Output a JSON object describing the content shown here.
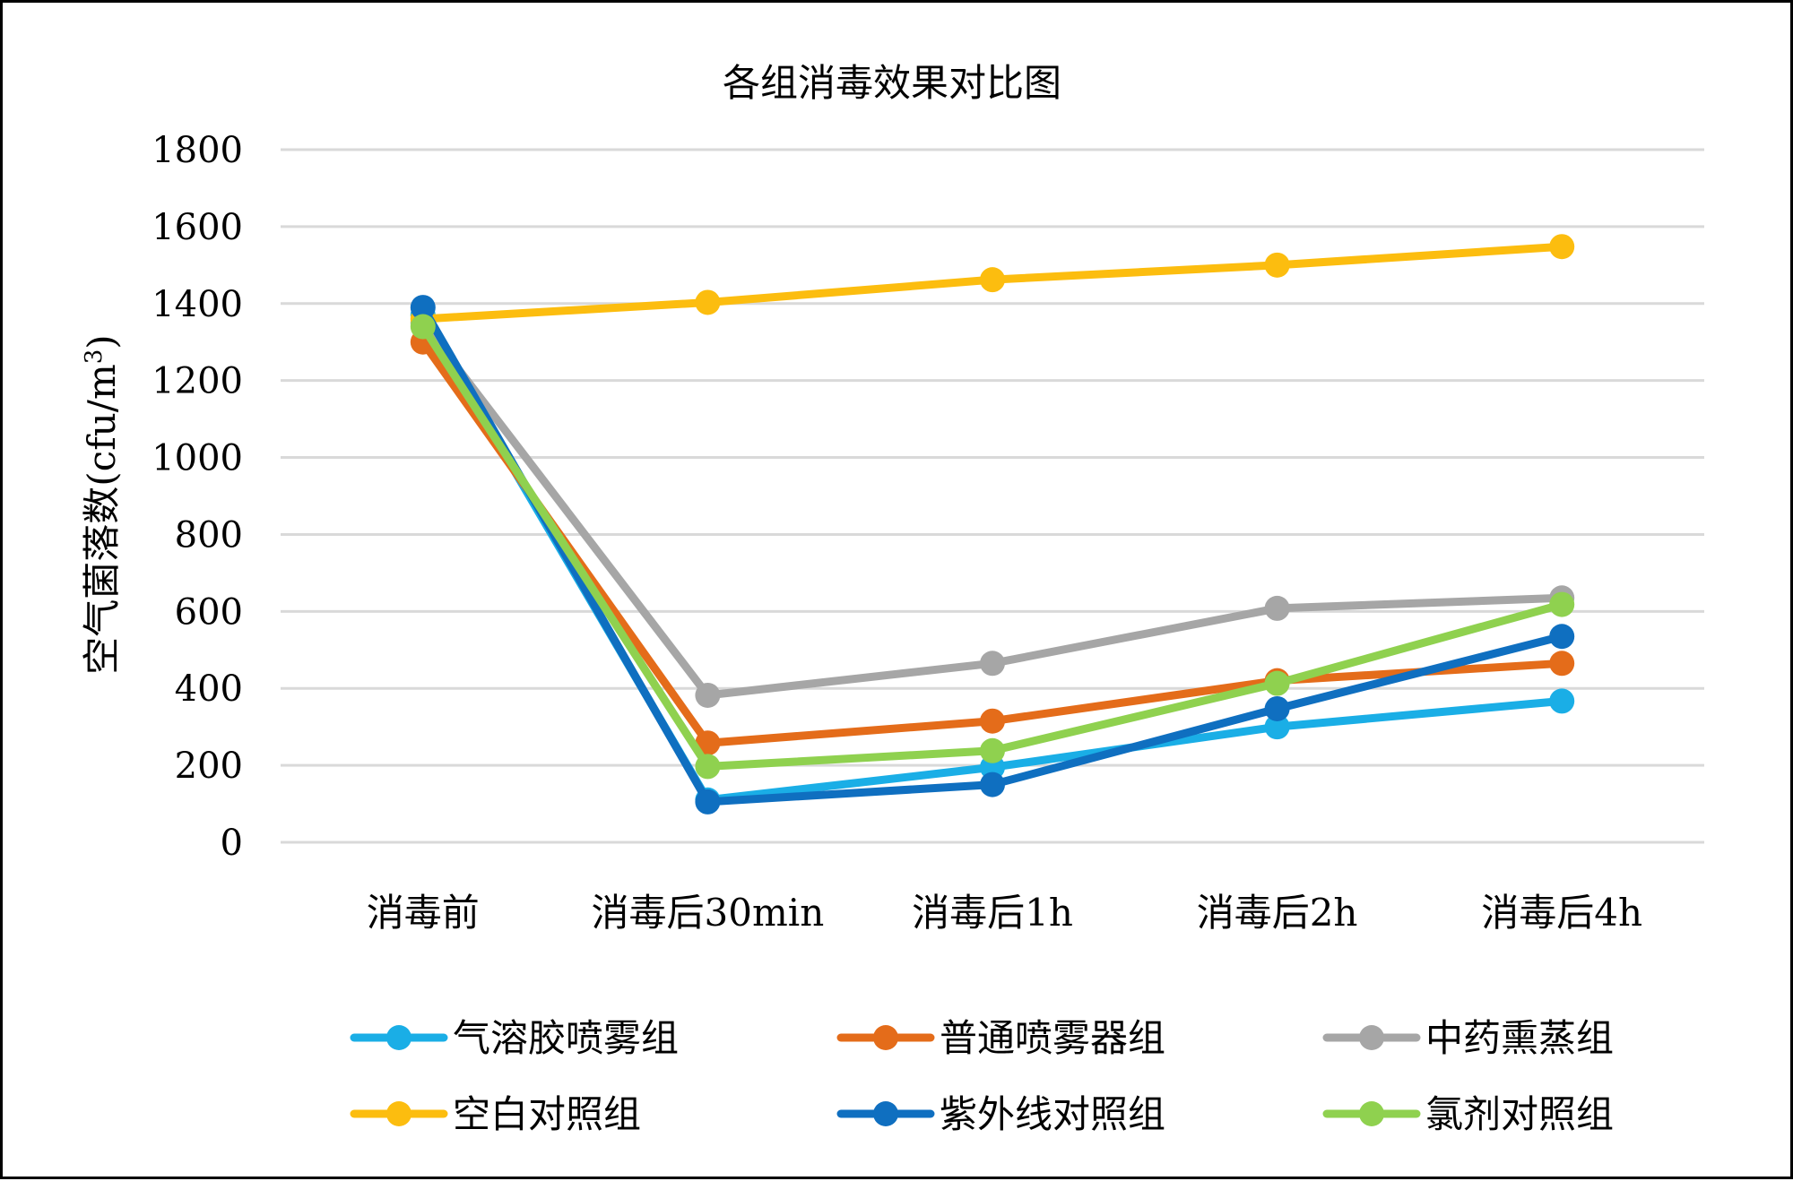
{
  "chart_data": {
    "type": "line",
    "title": "各组消毒效果对比图",
    "xlabel": "",
    "ylabel": "空气菌落数(cfu/m",
    "ylabel_superscript": "3",
    "ylabel_close": ")",
    "ylim": [
      0,
      1800
    ],
    "yticks": [
      0,
      200,
      400,
      600,
      800,
      1000,
      1200,
      1400,
      1600,
      1800
    ],
    "grid": true,
    "legend_position": "bottom",
    "categories": [
      "消毒前",
      "消毒后30min",
      "消毒后1h",
      "消毒后2h",
      "消毒后4h"
    ],
    "series": [
      {
        "name": "气溶胶喷雾组",
        "color": "#1aaee6",
        "values": [
          1370,
          110,
          195,
          300,
          367
        ]
      },
      {
        "name": "普通喷雾器组",
        "color": "#e46c1a",
        "values": [
          1300,
          258,
          315,
          420,
          465
        ]
      },
      {
        "name": "中药熏蒸组",
        "color": "#a6a6a6",
        "values": [
          1350,
          382,
          465,
          608,
          635
        ]
      },
      {
        "name": "空白对照组",
        "color": "#fcbd0f",
        "values": [
          1360,
          1403,
          1462,
          1500,
          1548
        ]
      },
      {
        "name": "紫外线对照组",
        "color": "#0f6fc0",
        "values": [
          1390,
          105,
          150,
          347,
          535
        ]
      },
      {
        "name": "氯剂对照组",
        "color": "#8fd14f",
        "values": [
          1340,
          197,
          238,
          413,
          618
        ]
      }
    ]
  }
}
